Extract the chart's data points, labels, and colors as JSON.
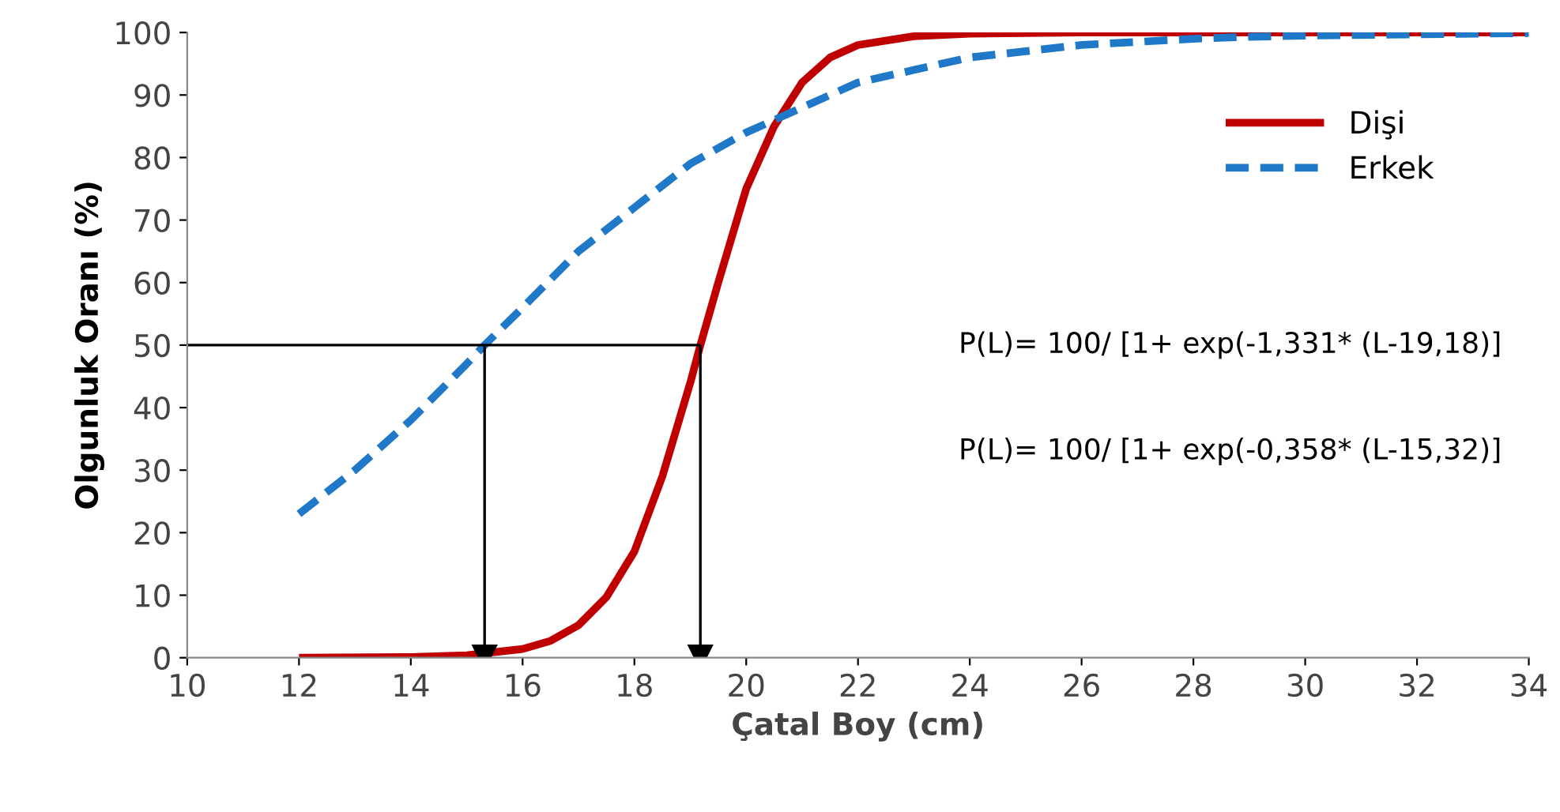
{
  "chart_data": {
    "type": "line",
    "xlabel": "Çatal Boy (cm)",
    "ylabel": "Olgunluk Oranı (%)",
    "xlim": [
      10,
      34
    ],
    "xticks": [
      10,
      12,
      14,
      16,
      18,
      20,
      22,
      24,
      26,
      28,
      30,
      32,
      34
    ],
    "ylim": [
      0,
      100
    ],
    "yticks": [
      0,
      10,
      20,
      30,
      40,
      50,
      60,
      70,
      80,
      90,
      100
    ],
    "grid": false,
    "legend": "top right",
    "series": [
      {
        "name": "Dişi",
        "color": "#c00000",
        "line_style": "solid",
        "x": [
          12,
          14,
          15,
          16,
          16.5,
          17,
          17.5,
          18,
          18.5,
          19,
          19.18,
          19.5,
          20,
          20.5,
          21,
          21.5,
          22,
          23,
          24,
          26,
          28,
          30,
          32,
          34
        ],
        "values": [
          0,
          0.1,
          0.4,
          1.4,
          2.7,
          5.2,
          9.7,
          17,
          29,
          44,
          50,
          60,
          75,
          85,
          92,
          96,
          98,
          99.4,
          99.8,
          100,
          100,
          100,
          100,
          100
        ]
      },
      {
        "name": "Erkek",
        "color": "#1f78c8",
        "line_style": "dashed",
        "x": [
          12,
          13,
          14,
          15,
          15.32,
          16,
          17,
          18,
          19,
          20,
          21,
          22,
          23,
          24,
          25,
          26,
          27,
          28,
          29,
          30,
          32,
          34
        ],
        "values": [
          23,
          30,
          38,
          47,
          50,
          56,
          65,
          72,
          79,
          84,
          88,
          92,
          94,
          96,
          97,
          98,
          98.5,
          99,
          99.3,
          99.5,
          99.7,
          99.9
        ]
      },
      {
        "color": "#000000",
        "line_style": "solid",
        "marker": "none",
        "x": [
          10,
          19.18
        ],
        "values": [
          50,
          50
        ]
      },
      {
        "color": "#000000",
        "line_style": "solid",
        "marker": "triangle",
        "x": [
          15.32,
          15.32
        ],
        "values": [
          50,
          0
        ]
      },
      {
        "color": "#000000",
        "line_style": "solid",
        "marker": "triangle",
        "x": [
          19.18,
          19.18
        ],
        "values": [
          50,
          0
        ]
      }
    ],
    "annotations": [
      "P(L)= 100/ [1+ exp(-1,331* (L-19,18)]",
      "P(L)= 100/ [1+ exp(-0,358* (L-15,32)]"
    ]
  }
}
